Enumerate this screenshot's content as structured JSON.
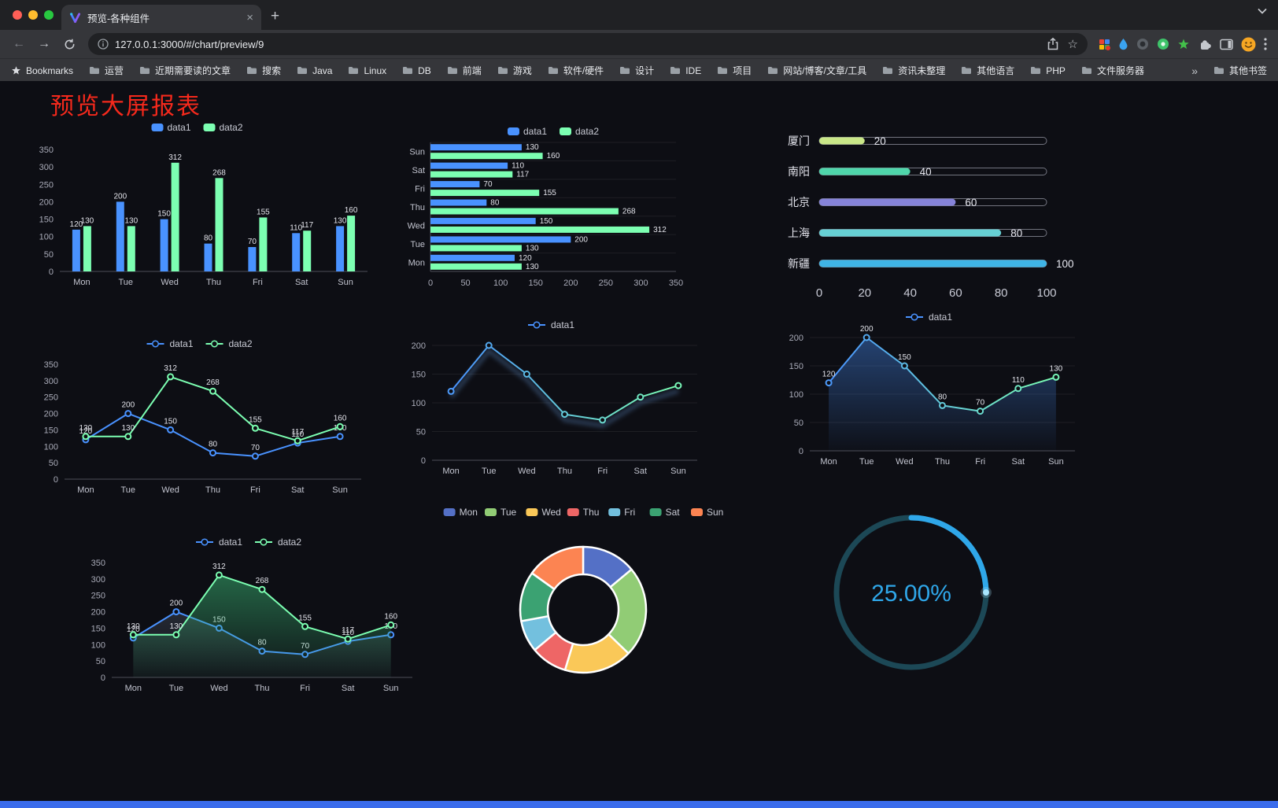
{
  "browser": {
    "traffic_lights": [
      "#ff5f57",
      "#febc2e",
      "#28c840"
    ],
    "tab": {
      "title": "预览-各种组件",
      "close_label": "×",
      "new_tab_label": "+"
    },
    "toolbar": {
      "url": "127.0.0.1:3000/#/chart/preview/9"
    },
    "bookmarks": {
      "label": "Bookmarks",
      "items": [
        "运营",
        "近期需要读的文章",
        "搜索",
        "Java",
        "Linux",
        "DB",
        "前端",
        "游戏",
        "软件/硬件",
        "设计",
        "IDE",
        "项目",
        "网站/博客/文章/工具",
        "资讯未整理",
        "其他语言",
        "PHP",
        "文件服务器"
      ],
      "overflow_chevron": "»",
      "other_bookmarks": "其他书签"
    }
  },
  "page": {
    "title": "预览大屏报表",
    "title_color": "#f5291c",
    "background": "#0d0e14",
    "footer_bar_color": "#3a6cec"
  },
  "chart_data": [
    {
      "id": "grouped-bar",
      "type": "bar",
      "legend_position": "top",
      "value_labels": true,
      "categories": [
        "Mon",
        "Tue",
        "Wed",
        "Thu",
        "Fri",
        "Sat",
        "Sun"
      ],
      "series": [
        {
          "name": "data1",
          "color": "#4992ff",
          "values": [
            120,
            200,
            150,
            80,
            70,
            110,
            130
          ]
        },
        {
          "name": "data2",
          "color": "#7cffb2",
          "values": [
            130,
            130,
            312,
            268,
            155,
            117,
            160
          ]
        }
      ],
      "ylim": [
        0,
        350
      ],
      "ytick": 50
    },
    {
      "id": "grouped-horizontal-bar",
      "type": "bar",
      "orientation": "horizontal",
      "legend_position": "top",
      "value_labels": true,
      "categories": [
        "Mon",
        "Tue",
        "Wed",
        "Thu",
        "Fri",
        "Sat",
        "Sun"
      ],
      "series": [
        {
          "name": "data1",
          "color": "#4992ff",
          "values": [
            120,
            200,
            150,
            80,
            70,
            110,
            130
          ]
        },
        {
          "name": "data2",
          "color": "#7cffb2",
          "values": [
            130,
            130,
            312,
            268,
            155,
            117,
            160
          ]
        }
      ],
      "xlim": [
        0,
        350
      ],
      "xtick": 50
    },
    {
      "id": "progress-bars",
      "type": "bar",
      "variant": "progress",
      "orientation": "horizontal",
      "categories": [
        "厦门",
        "南阳",
        "北京",
        "上海",
        "新疆"
      ],
      "values": [
        20,
        40,
        60,
        80,
        100
      ],
      "colors": [
        "#c9e788",
        "#4fd6ab",
        "#8583d9",
        "#66d0d4",
        "#3fb4e6"
      ],
      "xlim": [
        0,
        100
      ],
      "xticks": [
        0,
        20,
        40,
        60,
        80,
        100
      ]
    },
    {
      "id": "multi-line",
      "type": "line",
      "legend_position": "top",
      "value_labels": true,
      "grid": false,
      "categories": [
        "Mon",
        "Tue",
        "Wed",
        "Thu",
        "Fri",
        "Sat",
        "Sun"
      ],
      "series": [
        {
          "name": "data1",
          "color": "#4992ff",
          "values": [
            120,
            200,
            150,
            80,
            70,
            110,
            130
          ]
        },
        {
          "name": "data2",
          "color": "#7cffb2",
          "values": [
            130,
            130,
            312,
            268,
            155,
            117,
            160
          ]
        }
      ],
      "ylim": [
        0,
        350
      ],
      "ytick": 50
    },
    {
      "id": "gradient-line",
      "type": "line",
      "legend_position": "top",
      "value_labels": false,
      "grid": true,
      "categories": [
        "Mon",
        "Tue",
        "Wed",
        "Thu",
        "Fri",
        "Sat",
        "Sun"
      ],
      "series": [
        {
          "name": "data1",
          "color": "#4992ff",
          "gradient": [
            "#4992ff",
            "#7cffb2"
          ],
          "shadow": true,
          "values": [
            120,
            200,
            150,
            80,
            70,
            110,
            130
          ]
        }
      ],
      "ylim": [
        0,
        200
      ],
      "ytick": 50
    },
    {
      "id": "area-line",
      "type": "area",
      "legend_position": "top",
      "value_labels": true,
      "grid": true,
      "categories": [
        "Mon",
        "Tue",
        "Wed",
        "Thu",
        "Fri",
        "Sat",
        "Sun"
      ],
      "series": [
        {
          "name": "data1",
          "color": "#4992ff",
          "gradient": [
            "#4992ff",
            "#7cffb2"
          ],
          "area": {
            "from": "rgba(73,146,255,0.40)",
            "to": "rgba(73,146,255,0.02)"
          },
          "values": [
            120,
            200,
            150,
            80,
            70,
            110,
            130
          ]
        }
      ],
      "ylim": [
        0,
        200
      ],
      "ytick": 50
    },
    {
      "id": "multi-line-area",
      "type": "line",
      "legend_position": "top",
      "value_labels": true,
      "grid": false,
      "categories": [
        "Mon",
        "Tue",
        "Wed",
        "Thu",
        "Fri",
        "Sat",
        "Sun"
      ],
      "series": [
        {
          "name": "data1",
          "color": "#4992ff",
          "area": {
            "from": "rgba(150,170,200,0.18)",
            "to": "rgba(150,170,200,0.02)"
          },
          "values": [
            120,
            200,
            150,
            80,
            70,
            110,
            130
          ]
        },
        {
          "name": "data2",
          "color": "#7cffb2",
          "area": {
            "from": "rgba(60,190,120,0.50)",
            "to": "rgba(60,190,120,0.04)"
          },
          "values": [
            130,
            130,
            312,
            268,
            155,
            117,
            160
          ]
        }
      ],
      "ylim": [
        0,
        350
      ],
      "ytick": 50
    },
    {
      "id": "doughnut",
      "type": "pie",
      "variant": "doughnut",
      "legend_position": "top",
      "categories": [
        "Mon",
        "Tue",
        "Wed",
        "Thu",
        "Fri",
        "Sat",
        "Sun"
      ],
      "values": [
        120,
        200,
        150,
        80,
        70,
        110,
        130
      ],
      "colors": [
        "#5470c6",
        "#91cc75",
        "#fac858",
        "#ee6666",
        "#73c0de",
        "#3ba272",
        "#fc8452"
      ],
      "border_color": "#ffffff"
    },
    {
      "id": "gauge",
      "type": "pie",
      "variant": "gauge",
      "value": 25,
      "label": "25.00%",
      "color": "#2fa7e9",
      "track_color": "#1c4856",
      "tip_color": "#a8e6ff"
    }
  ]
}
